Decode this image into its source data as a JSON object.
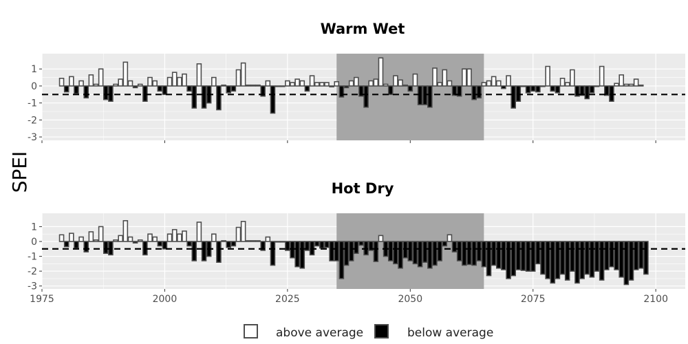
{
  "chart_data": {
    "type": "bar",
    "ylabel": "SPEI",
    "ylim": [
      -3.2,
      1.9
    ],
    "xlim": [
      1975,
      2106
    ],
    "x_ticks": [
      1975,
      2000,
      2025,
      2050,
      2075,
      2100
    ],
    "y_ticks": [
      -3,
      -2,
      -1,
      0,
      1
    ],
    "threshold": -0.5,
    "highlight_period": [
      2035,
      2065
    ],
    "legend": [
      {
        "label": "above average",
        "fill": "#ffffff"
      },
      {
        "label": "below average",
        "fill": "#000000"
      }
    ],
    "colors": {
      "panel_bg": "#ebebeb",
      "grid": "#ffffff",
      "highlight": "#a6a6a6",
      "bar_edge": "#4d4d4d",
      "below_fill": "#000000",
      "above_fill": "#ffffff"
    },
    "start_year": 1979,
    "panels": [
      {
        "title": "Warm Wet",
        "values": [
          0.45,
          -0.35,
          0.55,
          -0.45,
          0.3,
          -0.7,
          0.65,
          0.1,
          1.0,
          -0.8,
          -0.9,
          0.1,
          0.4,
          1.4,
          0.3,
          -0.1,
          0.1,
          -0.9,
          0.5,
          0.3,
          -0.3,
          -0.5,
          0.5,
          0.8,
          0.5,
          0.7,
          -0.3,
          -1.3,
          1.3,
          -1.3,
          -1.0,
          0.5,
          -1.4,
          0.05,
          -0.4,
          -0.3,
          0.95,
          1.35,
          0.05,
          0.05,
          0.05,
          -0.6,
          0.3,
          -1.6,
          0.0,
          0.0,
          0.3,
          0.2,
          0.4,
          0.3,
          -0.3,
          0.6,
          0.2,
          0.2,
          0.2,
          -0.05,
          0.25,
          -0.65,
          -0.1,
          0.3,
          0.5,
          -0.6,
          -1.25,
          0.3,
          0.4,
          1.65,
          0.1,
          -0.5,
          0.6,
          0.35,
          0.05,
          -0.3,
          0.7,
          -1.1,
          -1.1,
          -1.25,
          1.05,
          0.2,
          0.95,
          0.3,
          -0.55,
          -0.6,
          1.0,
          1.0,
          -0.8,
          -0.7,
          0.2,
          0.3,
          0.55,
          0.3,
          -0.15,
          0.6,
          -1.3,
          -0.9,
          0.0,
          -0.4,
          -0.3,
          -0.35,
          0.0,
          1.15,
          -0.3,
          -0.4,
          0.45,
          0.2,
          0.95,
          -0.6,
          -0.55,
          -0.75,
          -0.4,
          0.0,
          1.15,
          -0.55,
          -0.9,
          0.15,
          0.65,
          0.1,
          0.1,
          0.4,
          0.05
        ]
      },
      {
        "title": "Hot Dry",
        "values": [
          0.45,
          -0.35,
          0.55,
          -0.45,
          0.3,
          -0.7,
          0.65,
          0.1,
          1.0,
          -0.8,
          -0.9,
          0.1,
          0.4,
          1.4,
          0.3,
          -0.1,
          0.1,
          -0.9,
          0.5,
          0.3,
          -0.3,
          -0.5,
          0.5,
          0.8,
          0.5,
          0.7,
          -0.3,
          -1.3,
          1.3,
          -1.3,
          -1.0,
          0.5,
          -1.4,
          0.05,
          -0.4,
          -0.3,
          0.95,
          1.35,
          0.05,
          0.05,
          0.05,
          -0.6,
          0.3,
          -1.6,
          0.0,
          0.0,
          -0.6,
          -1.1,
          -1.7,
          -1.8,
          -0.6,
          -0.9,
          -0.3,
          -0.45,
          -0.4,
          -1.3,
          -1.3,
          -2.5,
          -1.6,
          -1.3,
          -0.8,
          -0.25,
          -0.9,
          -0.6,
          -1.35,
          0.4,
          -1.0,
          -1.3,
          -1.5,
          -1.8,
          -1.1,
          -1.3,
          -1.5,
          -1.7,
          -1.4,
          -1.8,
          -1.6,
          -1.3,
          -0.3,
          0.45,
          -0.7,
          -1.3,
          -1.6,
          -1.55,
          -1.6,
          -1.3,
          -1.7,
          -2.3,
          -1.6,
          -1.8,
          -1.9,
          -2.5,
          -2.3,
          -1.9,
          -1.95,
          -2.0,
          -2.0,
          -1.5,
          -2.2,
          -2.5,
          -2.8,
          -2.5,
          -2.2,
          -2.6,
          -2.0,
          -2.8,
          -2.5,
          -2.2,
          -2.4,
          -2.0,
          -2.6,
          -1.9,
          -1.7,
          -1.9,
          -2.4,
          -2.9,
          -2.6,
          -1.9,
          -1.8,
          -2.2
        ]
      }
    ]
  }
}
